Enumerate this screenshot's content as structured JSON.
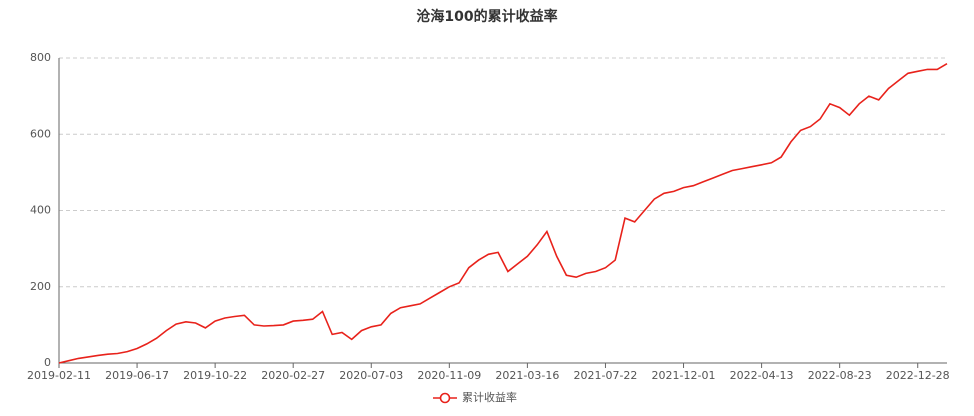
{
  "chart_data": {
    "type": "line",
    "title": "沧海100的累计收益率",
    "categories": [
      "2019-02-11",
      null,
      null,
      null,
      null,
      null,
      null,
      null,
      "2019-06-17",
      null,
      null,
      null,
      null,
      null,
      null,
      null,
      "2019-10-22",
      null,
      null,
      null,
      null,
      null,
      null,
      null,
      "2020-02-27",
      null,
      null,
      null,
      null,
      null,
      null,
      null,
      "2020-07-03",
      null,
      null,
      null,
      null,
      null,
      null,
      null,
      "2020-11-09",
      null,
      null,
      null,
      null,
      null,
      null,
      null,
      "2021-03-16",
      null,
      null,
      null,
      null,
      null,
      null,
      null,
      "2021-07-22",
      null,
      null,
      null,
      null,
      null,
      null,
      null,
      "2021-12-01",
      null,
      null,
      null,
      null,
      null,
      null,
      null,
      "2022-04-13",
      null,
      null,
      null,
      null,
      null,
      null,
      null,
      "2022-08-23",
      null,
      null,
      null,
      null,
      null,
      null,
      null,
      "2022-12-28",
      null,
      null,
      null
    ],
    "series": [
      {
        "name": "累计收益率",
        "color": "#e8221b",
        "values": [
          0,
          6,
          12,
          16,
          20,
          23,
          25,
          30,
          38,
          50,
          65,
          85,
          102,
          108,
          105,
          92,
          110,
          118,
          122,
          125,
          100,
          97,
          98,
          100,
          110,
          112,
          115,
          135,
          75,
          80,
          62,
          85,
          95,
          100,
          130,
          145,
          150,
          155,
          170,
          185,
          200,
          210,
          250,
          270,
          285,
          290,
          240,
          260,
          280,
          310,
          345,
          280,
          230,
          225,
          235,
          240,
          250,
          270,
          380,
          370,
          400,
          430,
          445,
          450,
          460,
          465,
          475,
          485,
          495,
          505,
          510,
          515,
          520,
          525,
          540,
          580,
          610,
          620,
          640,
          680,
          670,
          650,
          680,
          700,
          690,
          720,
          740,
          760,
          765,
          770,
          770,
          785
        ]
      }
    ],
    "ylim": [
      0,
      800
    ],
    "yticks": [
      0,
      200,
      400,
      600,
      800
    ],
    "grid": true
  }
}
